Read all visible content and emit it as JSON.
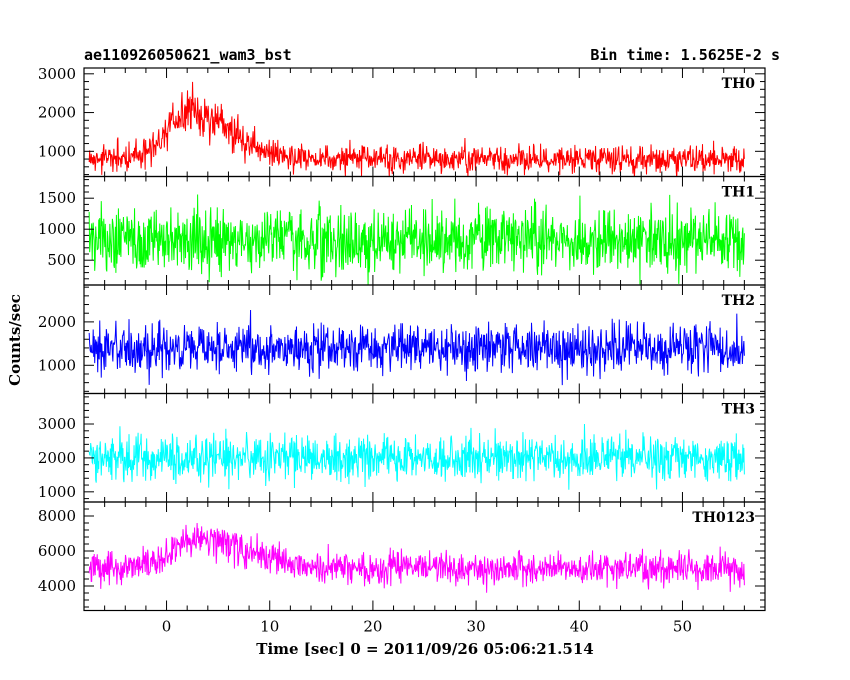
{
  "header": {
    "left": "ae110926050621_wam3_bst",
    "right": "Bin time: 1.5625E-2 s"
  },
  "chart_data": {
    "type": "line",
    "xlabel": "Time [sec] 0 = 2011/09/26 05:06:21.514",
    "ylabel": "Counts/sec",
    "xlim": [
      -8,
      58
    ],
    "x_ticks": [
      0,
      10,
      20,
      30,
      40,
      50
    ],
    "x_data_range": [
      -7.5,
      56
    ],
    "bin_time": 0.015625,
    "grid": false,
    "panels": [
      {
        "name": "TH0",
        "color": "#ff0000",
        "ylim": [
          350,
          3150
        ],
        "y_ticks": [
          1000,
          2000,
          3000
        ],
        "baseline": 800,
        "noise_amplitude": 330,
        "burst": {
          "peak_time": 2.5,
          "peak_amplitude": 1200,
          "rise_width": 3.5,
          "decay_width": 5.5
        }
      },
      {
        "name": "TH1",
        "color": "#00ff00",
        "ylim": [
          100,
          1850
        ],
        "y_ticks": [
          500,
          1000,
          1500
        ],
        "baseline": 820,
        "noise_amplitude": 470,
        "burst": null
      },
      {
        "name": "TH2",
        "color": "#0000ff",
        "ylim": [
          350,
          2850
        ],
        "y_ticks": [
          1000,
          2000
        ],
        "baseline": 1380,
        "noise_amplitude": 520,
        "burst": null
      },
      {
        "name": "TH3",
        "color": "#00ffff",
        "ylim": [
          700,
          3900
        ],
        "y_ticks": [
          1000,
          2000,
          3000
        ],
        "baseline": 2000,
        "noise_amplitude": 600,
        "burst": null
      },
      {
        "name": "TH0123",
        "color": "#ff00ff",
        "ylim": [
          2600,
          8800
        ],
        "y_ticks": [
          4000,
          6000,
          8000
        ],
        "baseline": 5000,
        "noise_amplitude": 850,
        "burst": {
          "peak_time": 3.0,
          "peak_amplitude": 1700,
          "rise_width": 3.5,
          "decay_width": 7.0
        }
      }
    ]
  }
}
